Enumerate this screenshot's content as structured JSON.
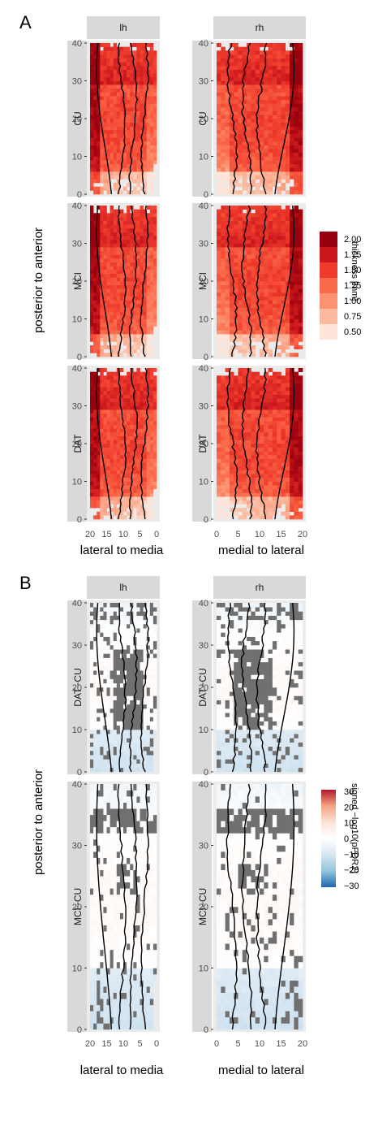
{
  "figure": {
    "panel_a_letter": "A",
    "panel_b_letter": "B"
  },
  "colors": {
    "strip_bg": "#d9d9d9",
    "panel_bg": "#ebebeb",
    "grey_mask": "#707070",
    "contour": "#000000"
  },
  "chart_data": [
    {
      "type": "heatmap",
      "panel": "A",
      "columns": [
        "lh",
        "rh"
      ],
      "rows": [
        "CU",
        "MCI",
        "DAT"
      ],
      "xlabel_lh": "lateral to media",
      "xlabel_rh": "medial to lateral",
      "ylabel": "posterior to anterior",
      "xticks_lh": [
        20,
        15,
        10,
        5,
        0
      ],
      "xticks_rh": [
        0,
        5,
        10,
        15,
        20
      ],
      "xlim": [
        0,
        20
      ],
      "yticks": [
        0,
        10,
        20,
        30,
        40
      ],
      "ylim": [
        0,
        40
      ],
      "legend": {
        "title": "thickness [mm]",
        "labels": [
          "2.00",
          "1.75",
          "1.50",
          "1.25",
          "1.00",
          "0.75",
          "0.50"
        ],
        "colors": [
          "#99000d",
          "#cb181d",
          "#ef3b2c",
          "#fb6a4a",
          "#fc9272",
          "#fcbba1",
          "#fee5d9"
        ]
      },
      "grid": "off"
    },
    {
      "type": "heatmap",
      "panel": "B",
      "columns": [
        "lh",
        "rh"
      ],
      "rows": [
        "DAT−CU",
        "MCI−CU"
      ],
      "xlabel_lh": "lateral to media",
      "xlabel_rh": "medial to lateral",
      "ylabel": "posterior to anterior",
      "xticks_lh": [
        20,
        15,
        10,
        5,
        0
      ],
      "xticks_rh": [
        0,
        5,
        10,
        15,
        20
      ],
      "xlim": [
        0,
        20
      ],
      "yticks": [
        0,
        10,
        20,
        30,
        40
      ],
      "ylim": [
        0,
        40
      ],
      "legend": {
        "title": "signed −log10(pFDR2)",
        "labels": [
          "30",
          "20",
          "10",
          "0",
          "−10",
          "−20",
          "−30"
        ],
        "range": [
          -30,
          30
        ],
        "colors": [
          "#b2182b",
          "#f4a582",
          "#fbe3d6",
          "#ffffff",
          "#d6e6f2",
          "#92c5de",
          "#2166ac"
        ]
      },
      "grid": "off"
    }
  ]
}
